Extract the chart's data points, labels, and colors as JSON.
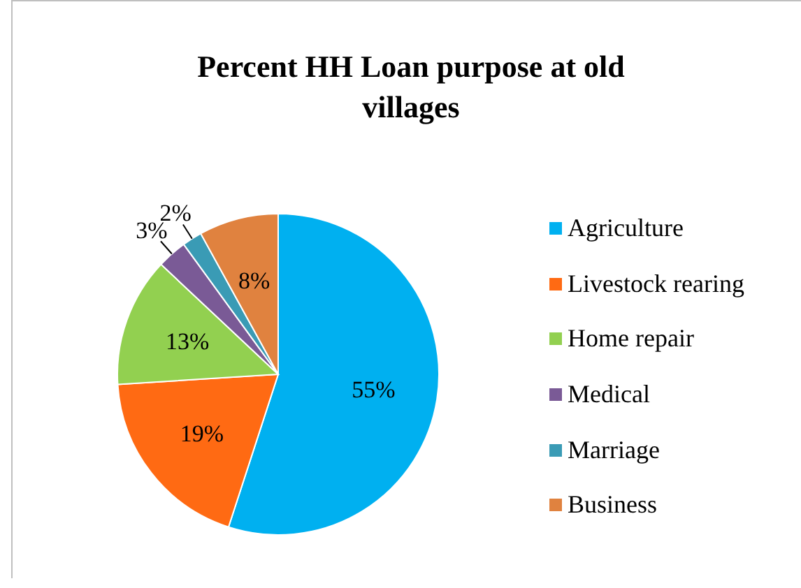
{
  "chart_data": {
    "type": "pie",
    "title": "Percent HH Loan purpose at old villages",
    "categories": [
      "Agriculture",
      "Livestock rearing",
      "Home repair",
      "Medical",
      "Marriage",
      "Business"
    ],
    "values": [
      55,
      19,
      13,
      3,
      2,
      8
    ],
    "colors": [
      "#00b0f0",
      "#ff6a13",
      "#92d050",
      "#7a5a96",
      "#3a9bb5",
      "#e0823f"
    ],
    "value_labels": [
      "55%",
      "19%",
      "13%",
      "3%",
      "2%",
      "8%"
    ],
    "legend": "right"
  }
}
